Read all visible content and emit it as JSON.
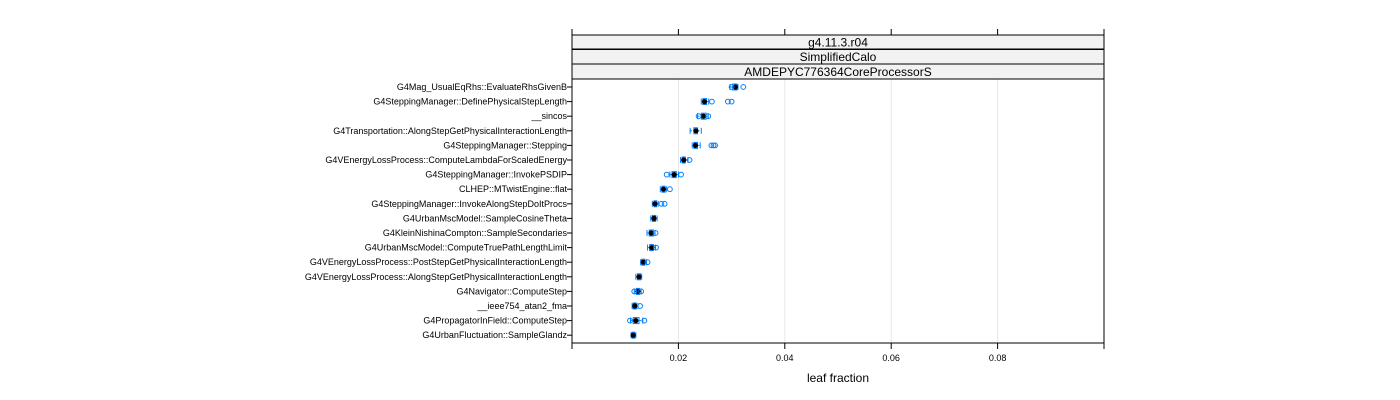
{
  "chart_data": {
    "type": "box",
    "strips": [
      "g4.11.3.r04",
      "SimplifiedCalo",
      "AMDEPYC776364CoreProcessorS"
    ],
    "xlabel": "leaf fraction",
    "xlim": [
      0.0,
      0.1
    ],
    "xticks": [
      0.02,
      0.04,
      0.06,
      0.08
    ],
    "xtick_labels": [
      "0.02",
      "0.04",
      "0.06",
      "0.08"
    ],
    "grid": true,
    "colors": {
      "box": "#0080ff",
      "median": "#000000",
      "points": "#0080ff",
      "strip_fill": "#f2f2f2",
      "grid": "#e6e6e6"
    },
    "categories": [
      {
        "label": "G4Mag_UsualEqRhs::EvaluateRhsGivenB",
        "whisker": [
          0.0297,
          0.0312
        ],
        "box": [
          0.0302,
          0.031
        ],
        "median": 0.0307,
        "outliers": [
          0.03,
          0.0322
        ]
      },
      {
        "label": "G4SteppingManager::DefinePhysicalStepLength",
        "whisker": [
          0.0243,
          0.0257
        ],
        "box": [
          0.0246,
          0.0253
        ],
        "median": 0.0249,
        "outliers": [
          0.0263,
          0.0293,
          0.03
        ]
      },
      {
        "label": "__sincos",
        "whisker": [
          0.0236,
          0.0256
        ],
        "box": [
          0.0243,
          0.0252
        ],
        "median": 0.0247,
        "outliers": [
          0.0238,
          0.0256
        ]
      },
      {
        "label": "G4Transportation::AlongStepGetPhysicalInteractionLength",
        "whisker": [
          0.0222,
          0.0243
        ],
        "box": [
          0.0229,
          0.0236
        ],
        "median": 0.0233,
        "outliers": []
      },
      {
        "label": "G4SteppingManager::Stepping",
        "whisker": [
          0.0226,
          0.0241
        ],
        "box": [
          0.0229,
          0.0236
        ],
        "median": 0.0232,
        "outliers": [
          0.0262,
          0.0266,
          0.0269
        ]
      },
      {
        "label": "G4VEnergyLossProcess::ComputeLambdaForScaledEnergy",
        "whisker": [
          0.0204,
          0.0218
        ],
        "box": [
          0.0207,
          0.0213
        ],
        "median": 0.021,
        "outliers": [
          0.0221
        ]
      },
      {
        "label": "G4SteppingManager::InvokePSDIP",
        "whisker": [
          0.0184,
          0.02
        ],
        "box": [
          0.0188,
          0.0196
        ],
        "median": 0.0192,
        "outliers": [
          0.0178,
          0.0205
        ]
      },
      {
        "label": "CLHEP::MTwistEngine::flat",
        "whisker": [
          0.0166,
          0.0178
        ],
        "box": [
          0.0169,
          0.0175
        ],
        "median": 0.0172,
        "outliers": [
          0.0184
        ]
      },
      {
        "label": "G4SteppingManager::InvokeAlongStepDoItProcs",
        "whisker": [
          0.0151,
          0.0162
        ],
        "box": [
          0.0154,
          0.0159
        ],
        "median": 0.0156,
        "outliers": [
          0.0168,
          0.0174
        ]
      },
      {
        "label": "G4UrbanMscModel::SampleCosineTheta",
        "whisker": [
          0.0148,
          0.016
        ],
        "box": [
          0.0151,
          0.0157
        ],
        "median": 0.0154,
        "outliers": []
      },
      {
        "label": "G4KleinNishinaCompton::SampleSecondaries",
        "whisker": [
          0.0141,
          0.0156
        ],
        "box": [
          0.0145,
          0.0153
        ],
        "median": 0.0149,
        "outliers": [
          0.0157
        ]
      },
      {
        "label": "G4UrbanMscModel::ComputeTruePathLengthLimit",
        "whisker": [
          0.0142,
          0.0157
        ],
        "box": [
          0.0146,
          0.0153
        ],
        "median": 0.015,
        "outliers": [
          0.0158
        ]
      },
      {
        "label": "G4VEnergyLossProcess::PostStepGetPhysicalInteractionLength",
        "whisker": [
          0.0129,
          0.014
        ],
        "box": [
          0.0131,
          0.0137
        ],
        "median": 0.0134,
        "outliers": [
          0.0142
        ]
      },
      {
        "label": "G4VEnergyLossProcess::AlongStepGetPhysicalInteractionLength",
        "whisker": [
          0.012,
          0.0131
        ],
        "box": [
          0.0123,
          0.0129
        ],
        "median": 0.0126,
        "outliers": []
      },
      {
        "label": "G4Navigator::ComputeStep",
        "whisker": [
          0.0117,
          0.013
        ],
        "box": [
          0.0121,
          0.0127
        ],
        "median": 0.0124,
        "outliers": [
          0.0117,
          0.013
        ]
      },
      {
        "label": "__ieee754_atan2_fma",
        "whisker": [
          0.0113,
          0.0124
        ],
        "box": [
          0.0115,
          0.0121
        ],
        "median": 0.0118,
        "outliers": [
          0.0128
        ]
      },
      {
        "label": "G4PropagatorInField::ComputeStep",
        "whisker": [
          0.011,
          0.0133
        ],
        "box": [
          0.0115,
          0.0126
        ],
        "median": 0.012,
        "outliers": [
          0.0109,
          0.0136
        ]
      },
      {
        "label": "G4UrbanFluctuation::SampleGlandz",
        "whisker": [
          0.0111,
          0.012
        ],
        "box": [
          0.0113,
          0.0118
        ],
        "median": 0.0115,
        "outliers": []
      }
    ]
  }
}
